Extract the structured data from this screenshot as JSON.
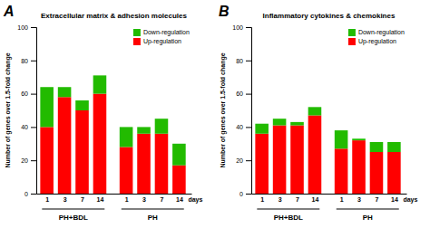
{
  "chart_data": [
    {
      "type": "bar",
      "title": "Extracellular matrix & adhesion molecules",
      "label": "A",
      "categories": [
        "1",
        "3",
        "7",
        "14",
        "1",
        "3",
        "7",
        "14"
      ],
      "series": [
        {
          "name": "Up-regulation",
          "color": "#FF0000",
          "values": [
            40,
            58,
            50,
            60,
            28,
            36,
            36,
            17
          ]
        },
        {
          "name": "Down-regulation",
          "color": "#22BB00",
          "values": [
            24,
            6,
            6,
            11,
            12,
            4,
            9,
            13
          ]
        }
      ],
      "stacked": true,
      "ylabel": "Number of genes over 1.5-fold change",
      "xlabel": "days",
      "annotations": [
        "PH+BDL",
        "PH"
      ],
      "ylim": [
        0,
        100
      ],
      "yticks": [
        0,
        20,
        40,
        60,
        80,
        100
      ],
      "legend": "upper right",
      "grid": false
    },
    {
      "type": "bar",
      "title": "Inflammatory cytokines & chemokines",
      "label": "B",
      "categories": [
        "1",
        "3",
        "7",
        "14",
        "1",
        "3",
        "7",
        "14"
      ],
      "series": [
        {
          "name": "Up-regulation",
          "color": "#FF0000",
          "values": [
            36,
            41,
            41,
            47,
            27,
            32,
            25,
            25
          ]
        },
        {
          "name": "Down-regulation",
          "color": "#22BB00",
          "values": [
            6,
            4,
            2,
            5,
            11,
            1,
            6,
            6
          ]
        }
      ],
      "stacked": true,
      "ylabel": "Number of genes over 1.5-fold change",
      "xlabel": "days",
      "annotations": [
        "PH+BDL",
        "PH"
      ],
      "ylim": [
        0,
        100
      ],
      "yticks": [
        0,
        20,
        40,
        60,
        80,
        100
      ],
      "legend": "upper right",
      "grid": false
    }
  ]
}
